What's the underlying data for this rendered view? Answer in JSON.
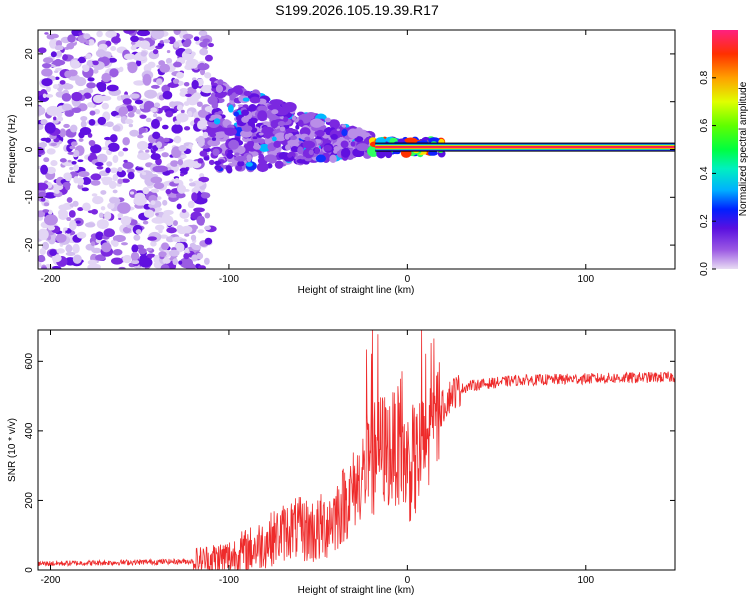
{
  "title": "S199.2026.105.19.39.R17",
  "colors": {
    "line": "#ee2b2b",
    "axis": "#000000",
    "background": "#ffffff"
  },
  "chart_data": [
    {
      "type": "heatmap",
      "name": "spectrogram",
      "xlabel": "Height of straight line (km)",
      "ylabel": "Frequency (Hz)",
      "xlim": [
        -207,
        150
      ],
      "ylim": [
        -25,
        25
      ],
      "xticks": [
        -200,
        -100,
        0,
        100
      ],
      "yticks": [
        -20,
        -10,
        0,
        10,
        20
      ],
      "colorbar": {
        "label": "Normalized spectral amplitude",
        "range": [
          0,
          1
        ],
        "ticks": [
          "0.0",
          "0.2",
          "0.4",
          "0.6",
          "0.8"
        ]
      },
      "features": {
        "carrier_frequency_hz": 0.5,
        "noise_region_km": [
          -207,
          -110
        ],
        "spread_region_km": [
          -110,
          -20
        ],
        "coherent_region_km": [
          -20,
          150
        ]
      }
    },
    {
      "type": "line",
      "name": "snr",
      "xlabel": "Height of straight line (km)",
      "ylabel": "SNR (10 * v/v)",
      "xlim": [
        -207,
        150
      ],
      "ylim": [
        0,
        690
      ],
      "xticks": [
        -200,
        -100,
        0,
        100
      ],
      "yticks": [
        0,
        200,
        400,
        600
      ],
      "profile": {
        "x": [
          -207,
          -120,
          -100,
          -85,
          -65,
          -50,
          -40,
          -30,
          -22,
          -18,
          -15,
          -10,
          -5,
          0,
          5,
          10,
          15,
          20,
          25,
          35,
          60,
          100,
          150
        ],
        "y": [
          18,
          25,
          35,
          65,
          120,
          110,
          160,
          230,
          300,
          330,
          350,
          340,
          360,
          300,
          310,
          360,
          420,
          470,
          510,
          530,
          545,
          550,
          555
        ]
      }
    }
  ]
}
